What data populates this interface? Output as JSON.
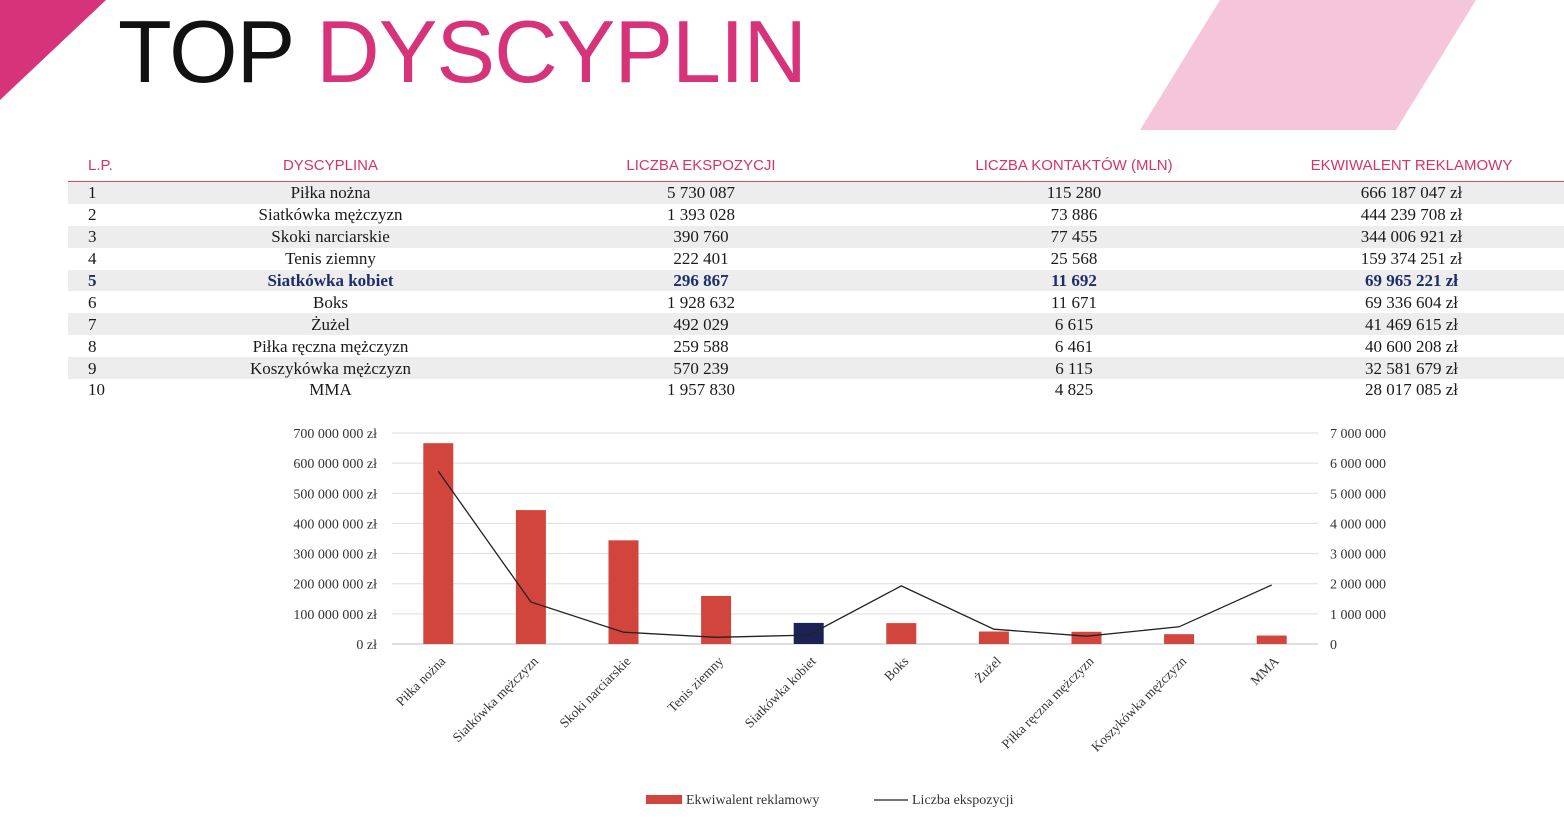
{
  "title": {
    "part1": "TOP",
    "part2": "DYSCYPLIN"
  },
  "colors": {
    "accent": "#d6337a",
    "accent_light": "#f5c6da",
    "bar": "#d2453c",
    "bar_highlight": "#1c2255",
    "line": "#222222",
    "header_text": "#d6336c"
  },
  "table": {
    "headers": [
      "L.P.",
      "DYSCYPLINA",
      "LICZBA EKSPOZYCJI",
      "LICZBA KONTAKTÓW (MLN)",
      "EKWIWALENT REKLAMOWY"
    ],
    "rows": [
      [
        "1",
        "Piłka nożna",
        "5 730 087",
        "115 280",
        "666 187 047 zł"
      ],
      [
        "2",
        "Siatkówka mężczyzn",
        "1 393 028",
        "73 886",
        "444 239 708 zł"
      ],
      [
        "3",
        "Skoki narciarskie",
        "390 760",
        "77 455",
        "344 006 921 zł"
      ],
      [
        "4",
        "Tenis ziemny",
        "222 401",
        "25 568",
        "159 374 251 zł"
      ],
      [
        "5",
        "Siatkówka kobiet",
        "296 867",
        "11 692",
        "69 965 221 zł"
      ],
      [
        "6",
        "Boks",
        "1 928 632",
        "11 671",
        "69 336 604 zł"
      ],
      [
        "7",
        "Żużel",
        "492 029",
        "6 615",
        "41 469 615 zł"
      ],
      [
        "8",
        "Piłka ręczna mężczyzn",
        "259 588",
        "6 461",
        "40 600 208 zł"
      ],
      [
        "9",
        "Koszykówka mężczyzn",
        "570 239",
        "6 115",
        "32 581 679 zł"
      ],
      [
        "10",
        "MMA",
        "1 957 830",
        "4 825",
        "28 017 085 zł"
      ]
    ],
    "highlight_row": 4
  },
  "chart_data": {
    "type": "bar",
    "categories": [
      "Piłka nożna",
      "Siatkówka mężczyzn",
      "Skoki narciarskie",
      "Tenis ziemny",
      "Siatkówka kobiet",
      "Boks",
      "Żużel",
      "Piłka ręczna mężczyzn",
      "Koszykówka mężczyzn",
      "MMA"
    ],
    "series": [
      {
        "name": "Ekwiwalent reklamowy",
        "type": "bar",
        "axis": "left",
        "values": [
          666187047,
          444239708,
          344006921,
          159374251,
          69965221,
          69336604,
          41469615,
          40600208,
          32581679,
          28017085
        ]
      },
      {
        "name": "Liczba ekspozycji",
        "type": "line",
        "axis": "right",
        "values": [
          5730087,
          1393028,
          390760,
          222401,
          296867,
          1928632,
          492029,
          259588,
          570239,
          1957830
        ]
      }
    ],
    "highlight_index": 4,
    "ylim_left": [
      0,
      700000000
    ],
    "ylim_right": [
      0,
      7000000
    ],
    "yticks_left": [
      "0 zł",
      "100 000 000 zł",
      "200 000 000 zł",
      "300 000 000 zł",
      "400 000 000 zł",
      "500 000 000 zł",
      "600 000 000 zł",
      "700 000 000 zł"
    ],
    "yticks_right": [
      "0",
      "1 000 000",
      "2 000 000",
      "3 000 000",
      "4 000 000",
      "5 000 000",
      "6 000 000",
      "7 000 000"
    ],
    "grid": true,
    "legend_position": "bottom"
  }
}
